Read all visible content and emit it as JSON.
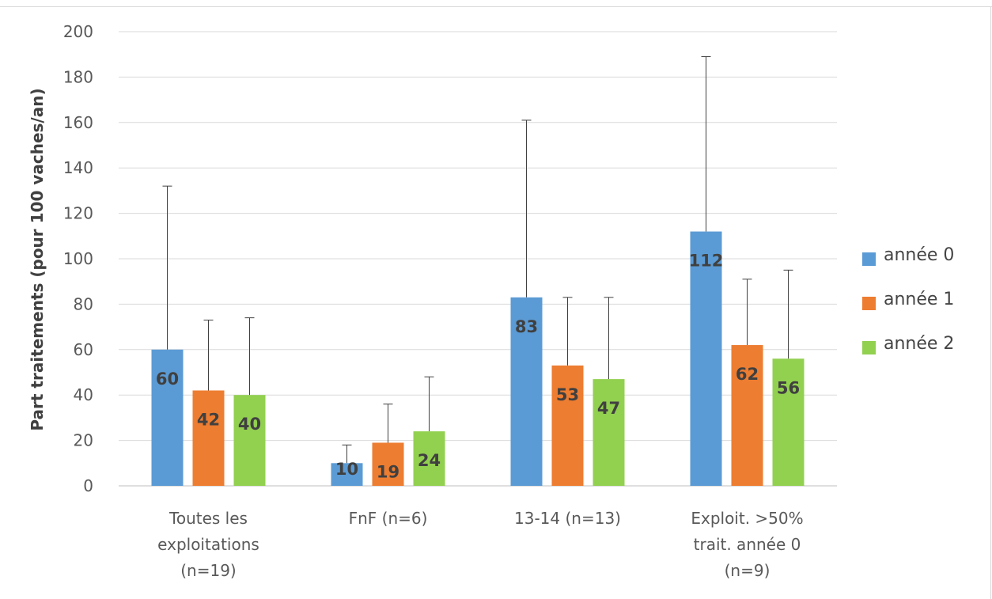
{
  "chart_data": {
    "type": "bar",
    "title": "",
    "xlabel": "",
    "ylabel": "Part traitements (pour 100 vaches/an)",
    "ylim": [
      0,
      200
    ],
    "yticks": [
      0,
      20,
      40,
      60,
      80,
      100,
      120,
      140,
      160,
      180,
      200
    ],
    "grid": true,
    "legend_position": "right",
    "categories": [
      [
        "Toutes les",
        "exploitations",
        "(n=19)"
      ],
      [
        "FnF (n=6)"
      ],
      [
        "13-14 (n=13)"
      ],
      [
        "Exploit. >50%",
        "trait. année 0",
        "(n=9)"
      ]
    ],
    "series": [
      {
        "name": "année 0",
        "color": "#5b9bd5",
        "values": [
          60,
          10,
          83,
          112
        ],
        "error_upper": [
          132,
          18,
          161,
          189
        ]
      },
      {
        "name": "année 1",
        "color": "#ed7d31",
        "values": [
          42,
          19,
          53,
          62
        ],
        "error_upper": [
          73,
          36,
          83,
          91
        ]
      },
      {
        "name": "année 2",
        "color": "#92d050",
        "values": [
          40,
          24,
          47,
          56
        ],
        "error_upper": [
          74,
          48,
          83,
          95
        ]
      }
    ]
  }
}
